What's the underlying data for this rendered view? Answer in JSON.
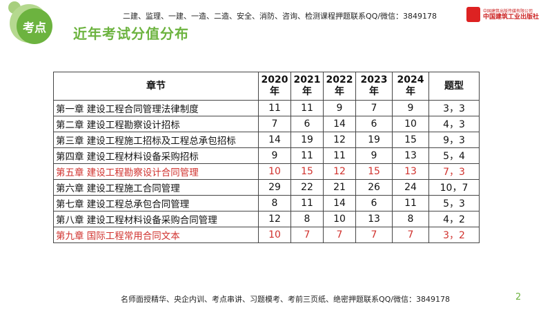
{
  "header": {
    "badge": "考点",
    "title": "近年考试分值分布",
    "note": "二建、监理、一建、一造、二造、安全、消防、咨询、检测课程押题联系QQ/微信：3849178",
    "logo_line1": "中国建筑出版传媒有限公司",
    "logo_line2": "中国建筑工业出版社"
  },
  "table": {
    "headers": [
      "章节",
      "2020年",
      "2021年",
      "2022年",
      "2023年",
      "2024年",
      "题型"
    ],
    "rows": [
      {
        "chapter": "第一章 建设工程合同管理法律制度",
        "values": [
          "11",
          "11",
          "9",
          "7",
          "9",
          "3，3"
        ],
        "highlight": false
      },
      {
        "chapter": "第二章 建设工程勘察设计招标",
        "values": [
          "7",
          "6",
          "14",
          "6",
          "10",
          "4，3"
        ],
        "highlight": false
      },
      {
        "chapter": "第三章 建设工程施工招标及工程总承包招标",
        "values": [
          "14",
          "19",
          "12",
          "19",
          "15",
          "9，3"
        ],
        "highlight": false
      },
      {
        "chapter": "第四章 建设工程材料设备采购招标",
        "values": [
          "9",
          "11",
          "11",
          "9",
          "13",
          "5，4"
        ],
        "highlight": false
      },
      {
        "chapter": "第五章 建设工程勘察设计合同管理",
        "values": [
          "10",
          "15",
          "12",
          "15",
          "13",
          "7，3"
        ],
        "highlight": true
      },
      {
        "chapter": "第六章 建设工程施工合同管理",
        "values": [
          "29",
          "22",
          "21",
          "26",
          "24",
          "10，7"
        ],
        "highlight": false
      },
      {
        "chapter": "第七章 建设工程总承包合同管理",
        "values": [
          "8",
          "11",
          "14",
          "6",
          "11",
          "5，3"
        ],
        "highlight": false
      },
      {
        "chapter": "第八章 建设工程材料设备采购合同管理",
        "values": [
          "12",
          "8",
          "10",
          "13",
          "8",
          "4，2"
        ],
        "highlight": false
      },
      {
        "chapter": "第九章 国际工程常用合同文本",
        "values": [
          "10",
          "7",
          "7",
          "7",
          "7",
          "3，2"
        ],
        "highlight": true
      }
    ]
  },
  "footer": {
    "note": "名师面授精华、央企内训、考点串讲、习题模考、考前三页纸、绝密押题联系QQ/微信：3849178",
    "page": "2"
  },
  "colors": {
    "accent": "#6cb33f",
    "highlight": "#d0312d"
  }
}
